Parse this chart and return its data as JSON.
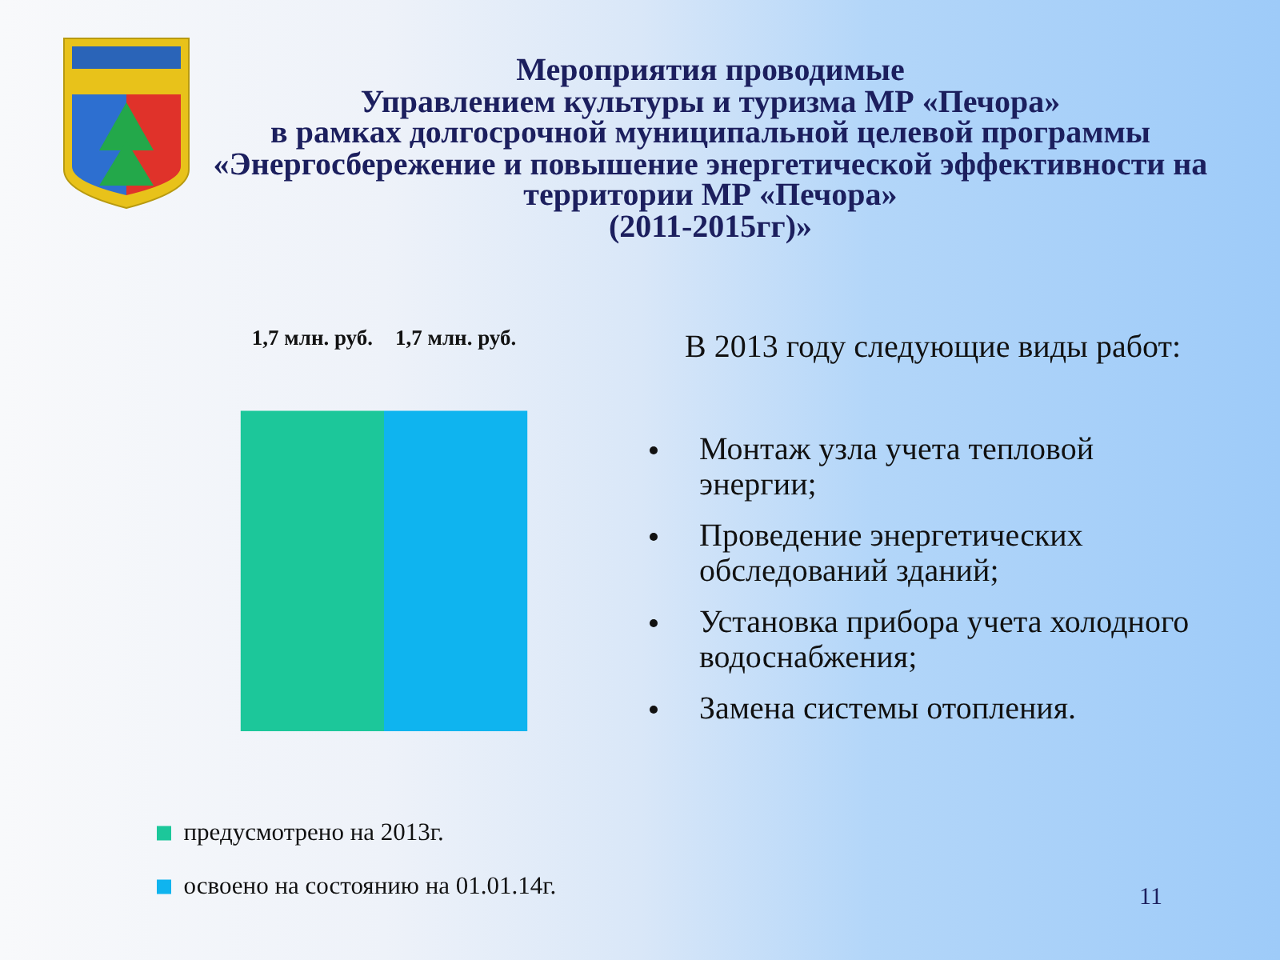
{
  "chart_data": {
    "type": "bar",
    "title": "Мероприятия проводимые\nУправлением культуры и туризма МР «Печора»\nв рамках долгосрочной муниципальной целевой программы\n«Энергосбережение и повышение энергетической эффективности на\nтерритории МР «Печора»\n(2011-2015гг)»",
    "categories": [
      null
    ],
    "series": [
      {
        "name": "предусмотрено на 2013г.",
        "color": "#1cc79a",
        "values": [
          1.7
        ],
        "value_labels": [
          "1,7 млн. руб."
        ]
      },
      {
        "name": "освоено на состоянию на 01.01.14г.",
        "color": "#0fb4ef",
        "values": [
          1.7
        ],
        "value_labels": [
          "1,7 млн. руб."
        ]
      }
    ],
    "legend": "bottom",
    "tick_labels": false,
    "annotations": [
      "В 2013 году следующие виды работ:",
      "Монтаж узла учета тепловой энергии;",
      "Проведение энергетических обследований зданий;",
      "Установка прибора учета холодного водоснабжения;",
      "Замена системы отопления.",
      "11"
    ]
  }
}
